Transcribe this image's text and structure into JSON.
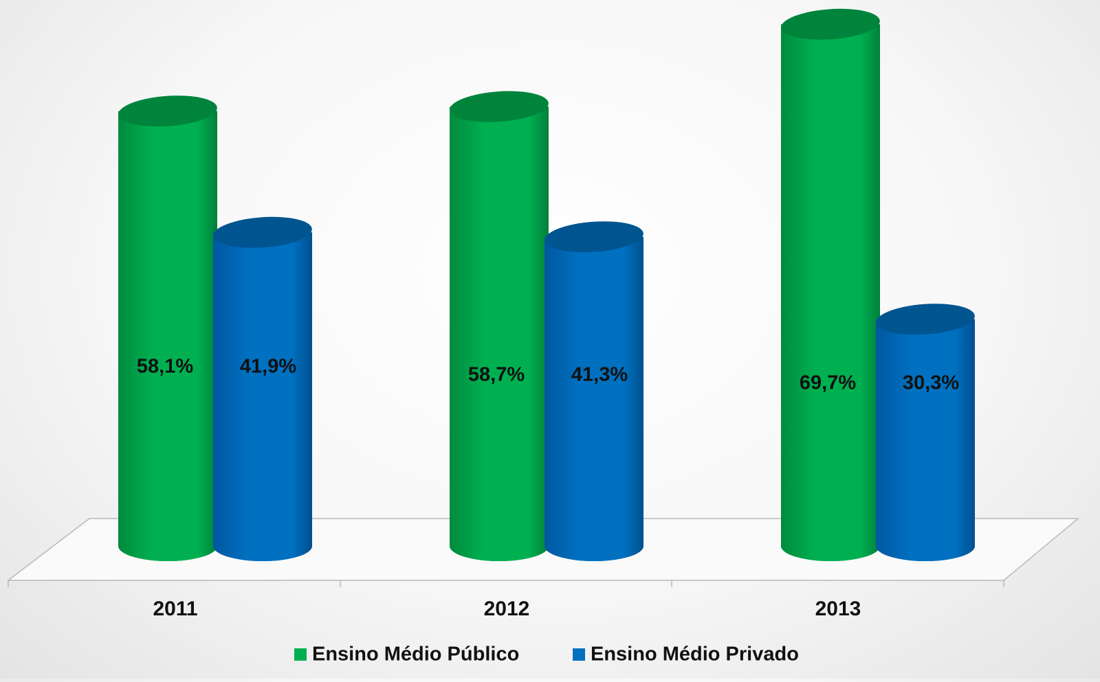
{
  "chart_data": {
    "type": "bar",
    "categories": [
      "2011",
      "2012",
      "2013"
    ],
    "series": [
      {
        "name": "Ensino Médio Público",
        "color": "#00b050",
        "values": [
          58.1,
          58.7,
          69.7
        ],
        "value_labels": [
          "58,1%",
          "58,7%",
          "69,7%"
        ]
      },
      {
        "name": "Ensino Médio Privado",
        "color": "#0070c0",
        "values": [
          41.9,
          41.3,
          30.3
        ],
        "value_labels": [
          "41,9%",
          "41,3%",
          "30,3%"
        ]
      }
    ]
  }
}
